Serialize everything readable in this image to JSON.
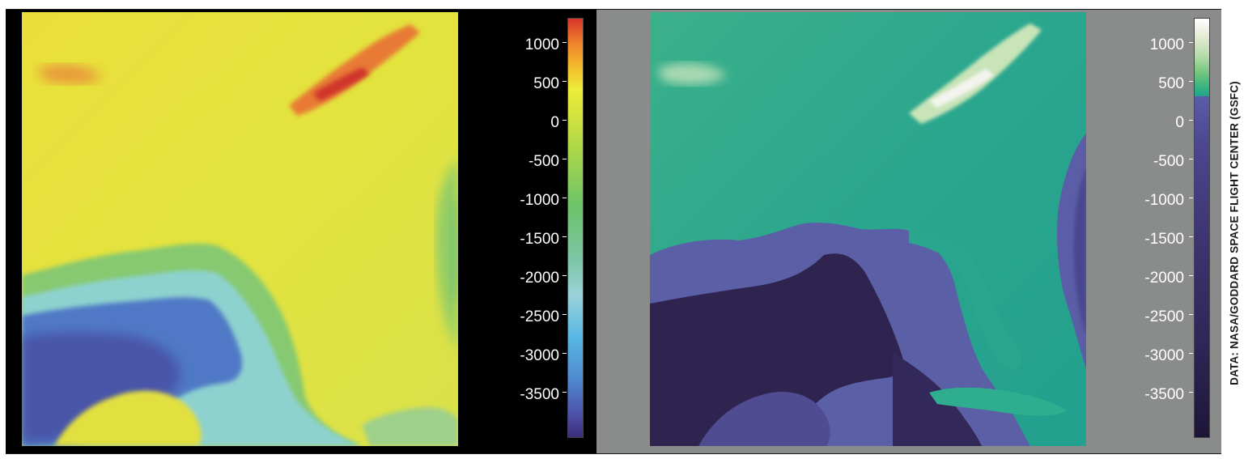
{
  "left_panel": {
    "colorbar_labels": [
      "1000",
      "500",
      "0",
      "-500",
      "-1000",
      "-1500",
      "-2000",
      "-2500",
      "-3000",
      "-3500"
    ],
    "colormap": "rainbow (orange-red high, yellow ~0, green, cyan, blue, purple low)"
  },
  "right_panel": {
    "colorbar_labels": [
      "1000",
      "500",
      "0",
      "-500",
      "-1000",
      "-1500",
      "-2000",
      "-2500",
      "-3000",
      "-3500"
    ],
    "colormap": "land: teal-green to white; ocean: purple to dark navy"
  },
  "credit": "DATA: NASA/GODDARD SPACE FLIGHT CENTER (GSFC)",
  "colors": {
    "left_background": "#000000",
    "right_background": "#898c8a",
    "left_land": "#e2e23c",
    "left_mountains": "#e0552e",
    "left_shelf": "#7ccc6e",
    "left_deep": "#4b63b8",
    "right_land": "#2ea893",
    "right_mountains": "#f2f2ea",
    "right_shelf": "#5b5fa6",
    "right_deep": "#2b1e4a"
  }
}
